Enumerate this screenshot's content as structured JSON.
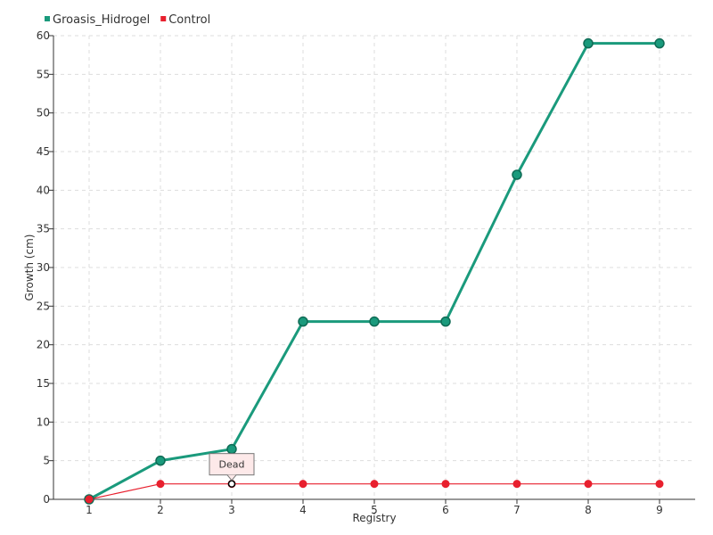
{
  "chart_data": {
    "type": "line",
    "categories": [
      "1",
      "2",
      "3",
      "4",
      "5",
      "6",
      "7",
      "8",
      "9"
    ],
    "series": [
      {
        "name": "Groasis_Hidrogel",
        "values": [
          0,
          5,
          6.5,
          23,
          23,
          23,
          42,
          59,
          59
        ],
        "color": "#1a9a7c"
      },
      {
        "name": "Control",
        "values": [
          0,
          2,
          2,
          2,
          2,
          2,
          2,
          2,
          2
        ],
        "color": "#e8202e"
      }
    ],
    "xlabel": "Registry",
    "ylabel": "Growth (cm)",
    "ylim": [
      0,
      60
    ],
    "yticks": [
      0,
      5,
      10,
      15,
      20,
      25,
      30,
      35,
      40,
      45,
      50,
      55,
      60
    ],
    "grid": true,
    "legend_position": "top-left",
    "annotations": [
      {
        "text": "Dead",
        "series": "Control",
        "category": "3"
      }
    ]
  }
}
